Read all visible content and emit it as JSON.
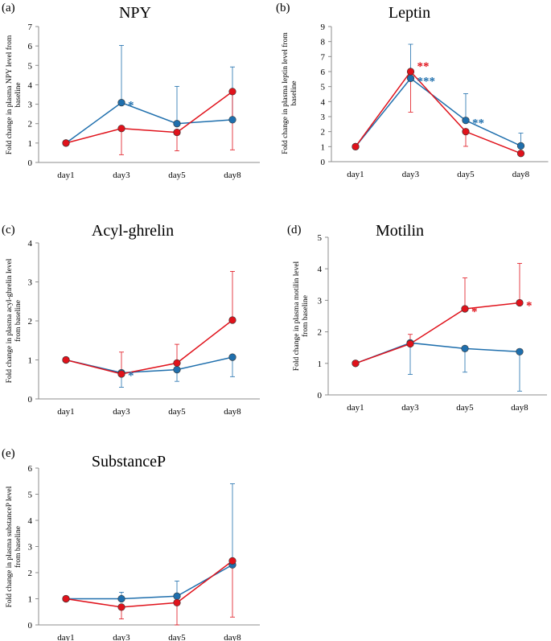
{
  "figure": {
    "colors": {
      "blue": "#1f6fad",
      "red": "#e0121b",
      "axis": "#8c8c8c",
      "text": "#000000"
    }
  },
  "chart_data": [
    {
      "type": "line",
      "panel_label": "(a)",
      "title": "NPY",
      "ylabel_lines": [
        "Fold change in plasma NPY level from",
        "baseline"
      ],
      "categories": [
        "day1",
        "day3",
        "day5",
        "day8"
      ],
      "ylim": [
        0,
        7
      ],
      "yticks": [
        0,
        1,
        2,
        3,
        4,
        5,
        6,
        7
      ],
      "series": [
        {
          "name": "blue",
          "color": "#1f6fad",
          "values": [
            1.0,
            3.08,
            2.0,
            2.2
          ],
          "err_up": [
            0,
            2.95,
            1.92,
            2.72
          ],
          "err_down": [
            0,
            0,
            0,
            0
          ]
        },
        {
          "name": "red",
          "color": "#e0121b",
          "values": [
            1.0,
            1.75,
            1.55,
            3.65
          ],
          "err_up": [
            0,
            0,
            0,
            0
          ],
          "err_down": [
            0,
            1.35,
            0.95,
            3.0
          ]
        }
      ],
      "annotations": [
        {
          "text": "*",
          "series": "blue",
          "index": 1
        }
      ]
    },
    {
      "type": "line",
      "panel_label": "(b)",
      "title": "Leptin",
      "ylabel_lines": [
        "Fold change in plasma leptin level from",
        "baseline"
      ],
      "categories": [
        "day1",
        "day3",
        "day5",
        "day8"
      ],
      "ylim": [
        0,
        9
      ],
      "yticks": [
        0,
        1,
        2,
        3,
        4,
        5,
        6,
        7,
        8,
        9
      ],
      "series": [
        {
          "name": "blue",
          "color": "#1f6fad",
          "values": [
            1.0,
            5.55,
            2.75,
            1.05
          ],
          "err_up": [
            0,
            2.27,
            1.78,
            0.85
          ],
          "err_down": [
            0,
            0,
            0,
            0
          ]
        },
        {
          "name": "red",
          "color": "#e0121b",
          "values": [
            1.0,
            6.0,
            2.0,
            0.55
          ],
          "err_up": [
            0,
            0,
            0,
            0
          ],
          "err_down": [
            0,
            2.7,
            0.98,
            0.15
          ]
        }
      ],
      "annotations": [
        {
          "text": "**",
          "series": "red",
          "index": 1
        },
        {
          "text": "***",
          "series": "blue",
          "index": 1
        },
        {
          "text": "**",
          "series": "blue",
          "index": 2
        }
      ]
    },
    {
      "type": "line",
      "panel_label": "(c)",
      "title": "Acyl-ghrelin",
      "ylabel_lines": [
        "Fold change in plasma acyl-ghrelin level",
        "from baseline"
      ],
      "categories": [
        "day1",
        "day3",
        "day5",
        "day8"
      ],
      "ylim": [
        0,
        4
      ],
      "yticks": [
        0,
        1,
        2,
        3,
        4
      ],
      "series": [
        {
          "name": "blue",
          "color": "#1f6fad",
          "values": [
            1.0,
            0.67,
            0.75,
            1.07
          ],
          "err_up": [
            0,
            0,
            0,
            0
          ],
          "err_down": [
            0,
            0.37,
            0.3,
            0.5
          ]
        },
        {
          "name": "red",
          "color": "#e0121b",
          "values": [
            1.0,
            0.64,
            0.92,
            2.02
          ],
          "err_up": [
            0,
            0.56,
            0.48,
            1.25
          ],
          "err_down": [
            0,
            0,
            0,
            0
          ]
        }
      ],
      "annotations": [
        {
          "text": "*",
          "series": "blue",
          "index": 1
        }
      ]
    },
    {
      "type": "line",
      "panel_label": "(d)",
      "title": "Motilin",
      "ylabel_lines": [
        "Fold change in plasma motilin level",
        "from baseline"
      ],
      "categories": [
        "day1",
        "day3",
        "day5",
        "day8"
      ],
      "ylim": [
        0,
        5
      ],
      "yticks": [
        0,
        1,
        2,
        3,
        4,
        5
      ],
      "series": [
        {
          "name": "blue",
          "color": "#1f6fad",
          "values": [
            1.0,
            1.65,
            1.47,
            1.37
          ],
          "err_up": [
            0,
            0,
            0,
            0
          ],
          "err_down": [
            0,
            1.0,
            0.75,
            1.25
          ]
        },
        {
          "name": "red",
          "color": "#e0121b",
          "values": [
            1.0,
            1.62,
            2.73,
            2.92
          ],
          "err_up": [
            0,
            0.3,
            0.98,
            1.25
          ],
          "err_down": [
            0,
            0,
            0,
            0
          ]
        }
      ],
      "annotations": [
        {
          "text": "*",
          "series": "red",
          "index": 2
        },
        {
          "text": "*",
          "series": "red",
          "index": 3
        }
      ]
    },
    {
      "type": "line",
      "panel_label": "(e)",
      "title": "SubstanceP",
      "ylabel_lines": [
        "Fold change in plasma substanceP level",
        "from baseline"
      ],
      "categories": [
        "day1",
        "day3",
        "day5",
        "day8"
      ],
      "ylim": [
        0,
        6
      ],
      "yticks": [
        0,
        1,
        2,
        3,
        4,
        5,
        6
      ],
      "series": [
        {
          "name": "blue",
          "color": "#1f6fad",
          "values": [
            1.0,
            1.0,
            1.1,
            2.3
          ],
          "err_up": [
            0,
            0.25,
            0.58,
            3.1
          ],
          "err_down": [
            0,
            0,
            0,
            0
          ]
        },
        {
          "name": "red",
          "color": "#e0121b",
          "values": [
            1.0,
            0.68,
            0.85,
            2.45
          ],
          "err_up": [
            0,
            0,
            0,
            0
          ],
          "err_down": [
            0,
            0.45,
            0.85,
            2.15
          ]
        }
      ],
      "annotations": []
    }
  ]
}
